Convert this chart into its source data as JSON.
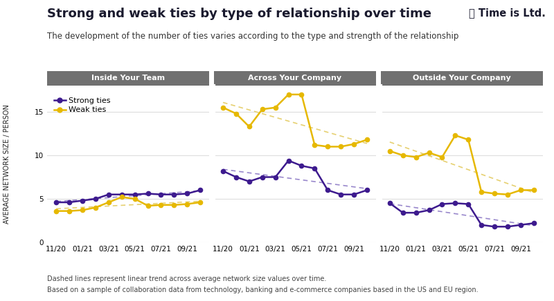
{
  "title": "Strong and weak ties by type of relationship over time",
  "subtitle": "The development of the number of ties varies according to the type and strength of the relationship",
  "logo_text": "⌛ Time is Ltd.",
  "ylabel": "AVERAGE NETWORK SIZE / PERSON",
  "footnote1": "Dashed lines represent linear trend across average network size values over time.",
  "footnote2": "Based on a sample of collaboration data from technology, banking and e-commerce companies based in the US and EU region.",
  "x_labels": [
    "11/20",
    "01/21",
    "03/21",
    "05/21",
    "07/21",
    "09/21"
  ],
  "panels": [
    {
      "title": "Inside Your Team",
      "strong": [
        4.6,
        4.6,
        4.8,
        5.0,
        5.5,
        5.5,
        5.5,
        5.6,
        5.5,
        5.5,
        5.6,
        6.0
      ],
      "weak": [
        3.6,
        3.6,
        3.7,
        4.0,
        4.6,
        5.2,
        5.0,
        4.2,
        4.3,
        4.3,
        4.4,
        4.6
      ]
    },
    {
      "title": "Across Your Company",
      "strong": [
        8.2,
        7.5,
        7.0,
        7.5,
        7.5,
        9.4,
        8.8,
        8.5,
        6.0,
        5.5,
        5.5,
        6.0
      ],
      "weak": [
        15.5,
        14.8,
        13.3,
        15.3,
        15.5,
        17.0,
        17.0,
        11.2,
        11.0,
        11.0,
        11.3,
        11.8
      ]
    },
    {
      "title": "Outside Your Company",
      "strong": [
        4.5,
        3.4,
        3.4,
        3.7,
        4.4,
        4.5,
        4.4,
        2.0,
        1.8,
        1.8,
        2.0,
        2.2
      ],
      "weak": [
        10.5,
        10.0,
        9.8,
        10.3,
        9.8,
        12.3,
        11.8,
        5.8,
        5.6,
        5.5,
        6.0,
        6.0
      ]
    }
  ],
  "strong_color": "#3d1a8e",
  "weak_color": "#e6b800",
  "trend_strong_color": "#9988cc",
  "trend_weak_color": "#e6d070",
  "panel_header_bg": "#707070",
  "panel_header_fg": "#ffffff",
  "plot_bg_color": "#ffffff",
  "fig_bg_color": "#ffffff",
  "ylim": [
    0,
    18
  ],
  "yticks": [
    0,
    5,
    10,
    15
  ],
  "title_fontsize": 13,
  "subtitle_fontsize": 8.5,
  "axis_label_fontsize": 7,
  "tick_fontsize": 7.5,
  "panel_title_fontsize": 8,
  "legend_fontsize": 8,
  "footnote_fontsize": 7
}
